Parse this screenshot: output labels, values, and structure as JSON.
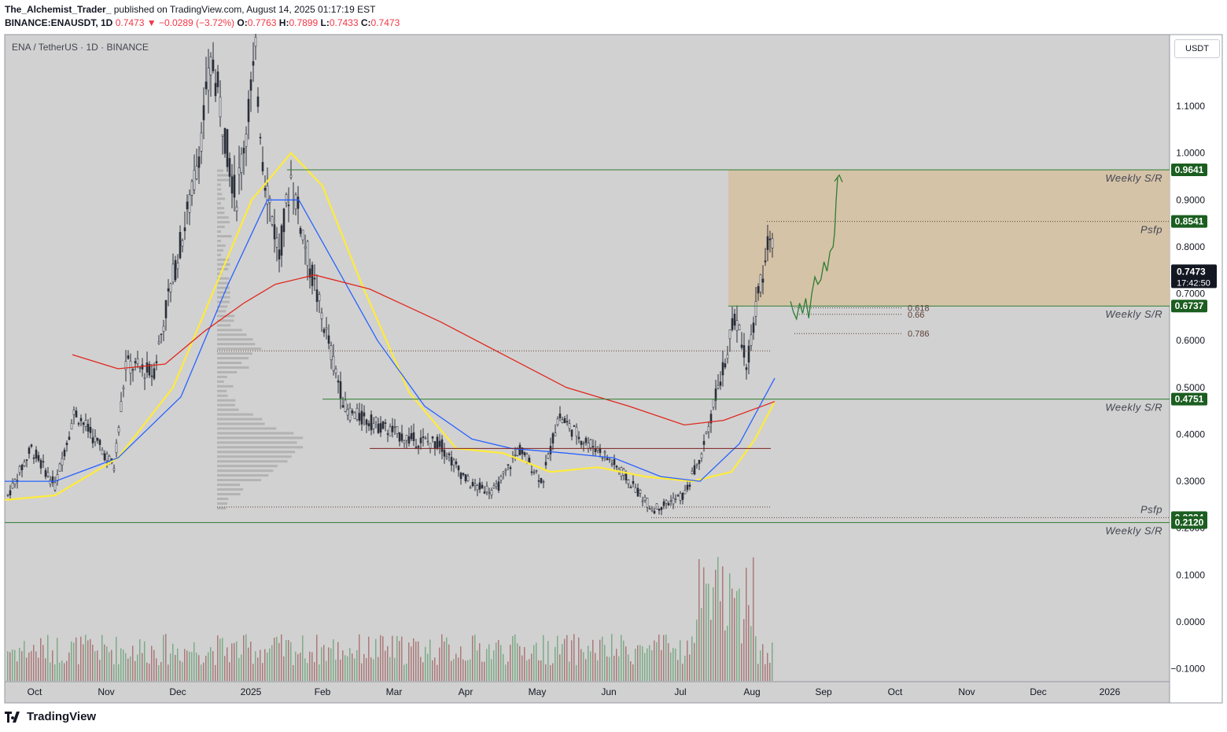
{
  "header": {
    "author": "The_Alchemist_Trader_",
    "published": "published on TradingView.com, August 14, 2025 01:17:19 EST",
    "symbol_line": "BINANCE:ENAUSDT, 1D",
    "last": "0.7473",
    "change": "−0.0289 (−3.72%)",
    "o_label": "O:",
    "o": "0.7763",
    "h_label": "H:",
    "h": "0.7899",
    "l_label": "L:",
    "l": "0.7433",
    "c_label": "C:",
    "c": "0.7473"
  },
  "legend": "ENA / TetherUS · 1D · BINANCE",
  "currency_button": "USDT",
  "footer": {
    "brand": "TradingView"
  },
  "colors": {
    "up": "#089981",
    "down": "#f23645",
    "ma_yellow": "#ffeb3b",
    "ma_blue": "#2962ff",
    "ma_red": "#e0271d",
    "zone": "#d5c2a5",
    "sr_line": "#2e7d32",
    "badge_green": "#1b5e20",
    "price_badge": "#131722"
  },
  "chart_data": {
    "type": "candlestick",
    "x_ticks": [
      "Oct",
      "Nov",
      "Dec",
      "2025",
      "Feb",
      "Mar",
      "Apr",
      "May",
      "Jun",
      "Jul",
      "Aug",
      "Sep",
      "Oct",
      "Nov",
      "Dec",
      "2026"
    ],
    "y_ticks": [
      "1.1000",
      "1.0000",
      "0.9000",
      "0.8000",
      "0.7000",
      "0.6000",
      "0.5000",
      "0.4000",
      "0.3000",
      "0.2000",
      "0.1000",
      "0.0000",
      "−0.1000"
    ],
    "price_badges": [
      {
        "value": "0.9641",
        "kind": "level"
      },
      {
        "value": "0.8541",
        "kind": "level"
      },
      {
        "value": "0.6737",
        "kind": "level"
      },
      {
        "value": "0.4751",
        "kind": "level"
      },
      {
        "value": "0.2224",
        "kind": "level"
      },
      {
        "value": "0.2120",
        "kind": "level"
      }
    ],
    "last_price": {
      "value": "0.7473",
      "countdown": "17:42:50"
    },
    "annotations": [
      {
        "text": "Weekly S/R",
        "price": 0.9641
      },
      {
        "text": "Psfp",
        "price": 0.8541
      },
      {
        "text": "Weekly S/R",
        "price": 0.6737
      },
      {
        "text": "Weekly S/R",
        "price": 0.4751
      },
      {
        "text": "Psfp",
        "price": 0.2224
      },
      {
        "text": "Weekly S/R",
        "price": 0.212
      }
    ],
    "fib_levels": [
      {
        "text": "0.618",
        "price": 0.67
      },
      {
        "text": "0.66",
        "price": 0.656
      },
      {
        "text": "0.786",
        "price": 0.615
      }
    ],
    "zone": {
      "top": 0.9641,
      "bottom": 0.6737
    },
    "trajectory": [
      [
        0.0,
        0.684
      ],
      [
        0.004,
        0.66
      ],
      [
        0.008,
        0.646
      ],
      [
        0.012,
        0.68
      ],
      [
        0.016,
        0.658
      ],
      [
        0.02,
        0.69
      ],
      [
        0.024,
        0.648
      ],
      [
        0.028,
        0.7
      ],
      [
        0.032,
        0.736
      ],
      [
        0.036,
        0.72
      ],
      [
        0.04,
        0.73
      ],
      [
        0.044,
        0.768
      ],
      [
        0.048,
        0.748
      ],
      [
        0.052,
        0.79
      ],
      [
        0.056,
        0.8
      ],
      [
        0.058,
        0.83
      ],
      [
        0.06,
        0.9
      ],
      [
        0.062,
        0.948
      ]
    ]
  }
}
